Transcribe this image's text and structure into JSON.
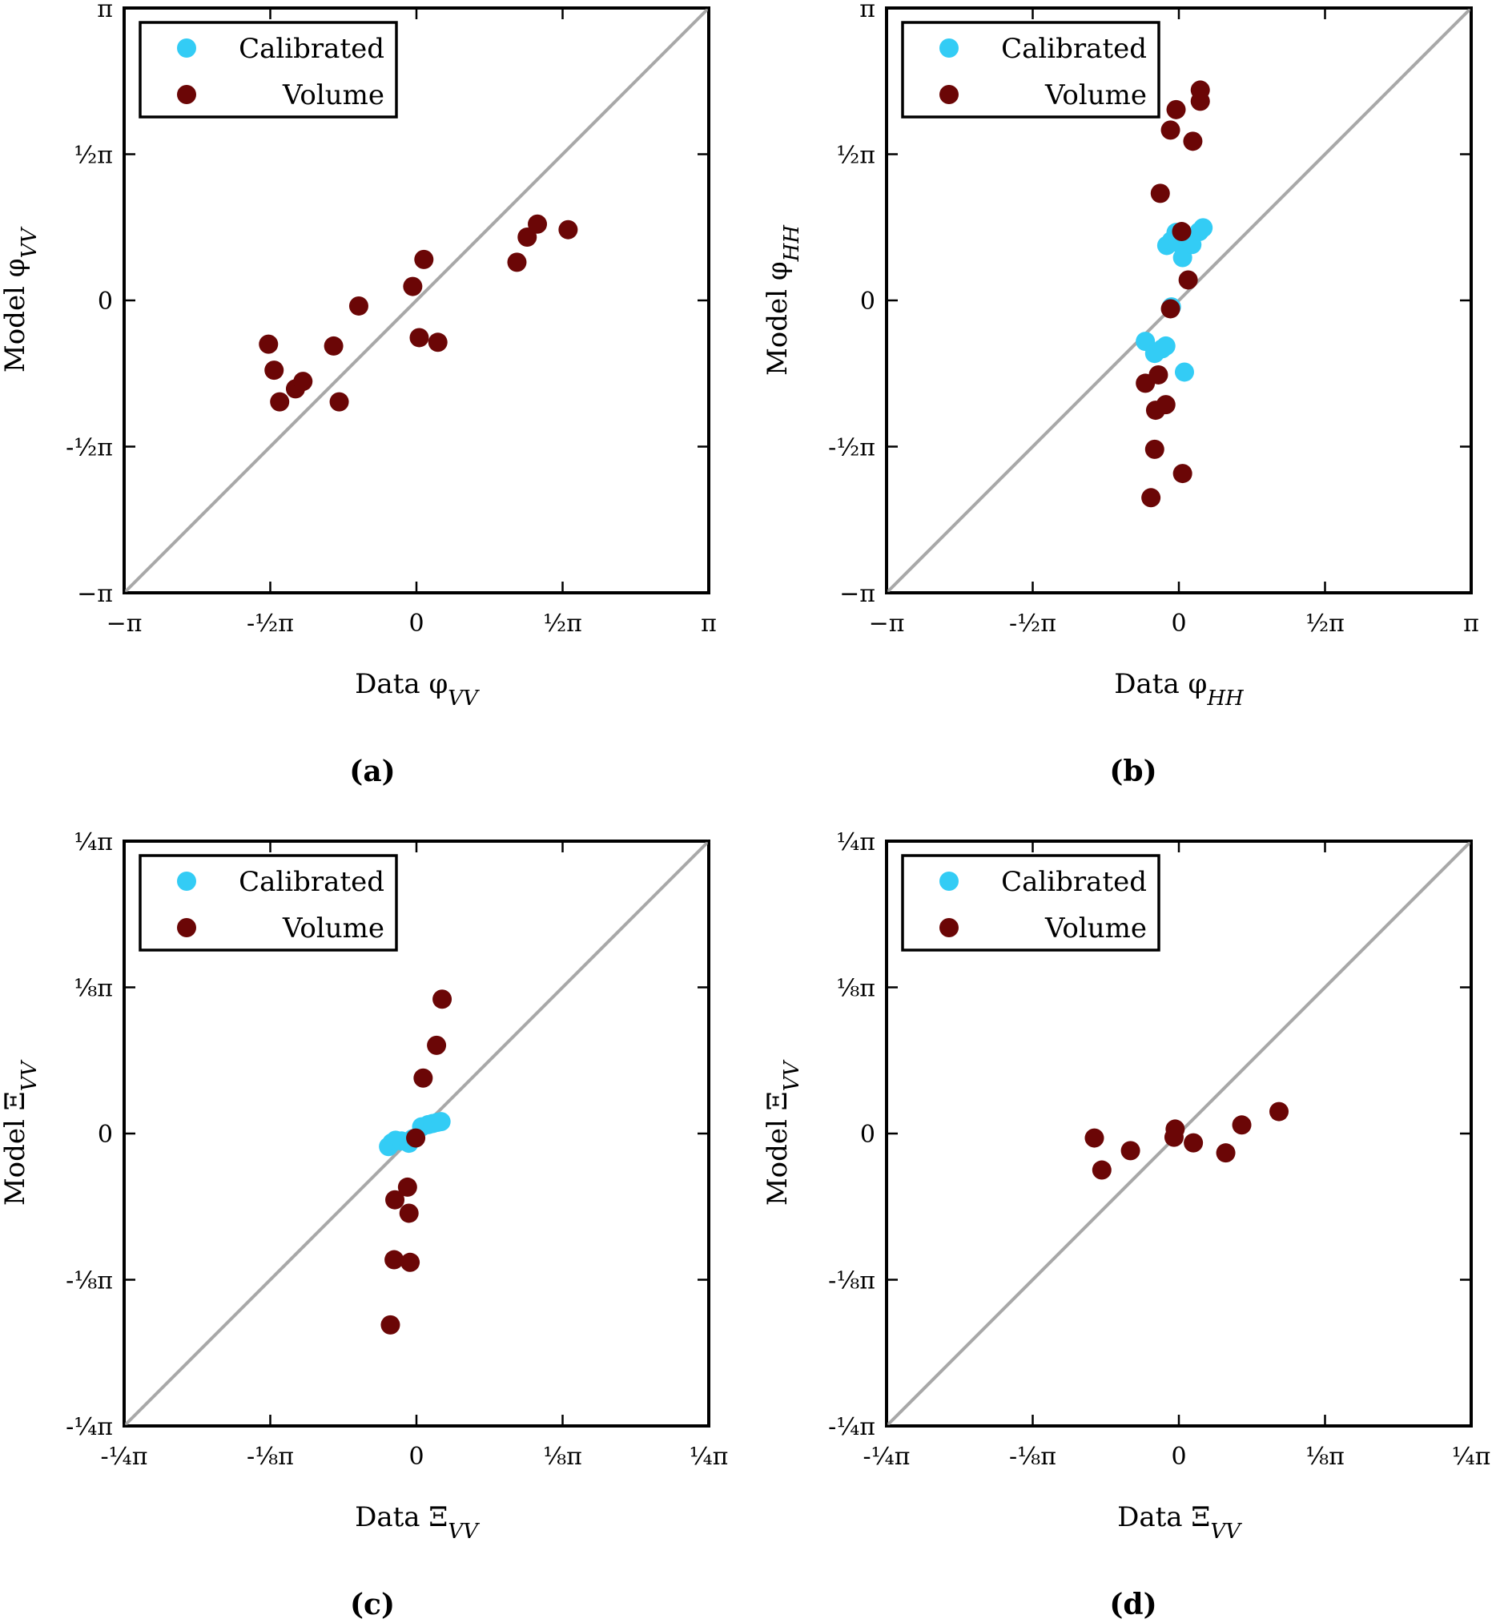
{
  "chart_data": [
    {
      "type": "scatter",
      "panel": "(a)",
      "xlabel": "Data φ_VV",
      "ylabel": "Model φ_VV",
      "xlim": [
        "-π",
        "π"
      ],
      "ylim": [
        "-π",
        "π"
      ],
      "xticks": [
        "−π",
        "-½π",
        "0",
        "½π",
        "π"
      ],
      "yticks": [
        "−π",
        "-½π",
        "0",
        "½π",
        "π"
      ],
      "reference_line": "y = x",
      "legend_position": "top-left",
      "legend": [
        "Calibrated",
        "Volume"
      ],
      "series": [
        {
          "name": "Calibrated",
          "color": "#33ccf5",
          "points": []
        },
        {
          "name": "Volume",
          "color": "#6b0606",
          "points": [
            [
              -1.59,
              -0.47
            ],
            [
              -1.53,
              -0.75
            ],
            [
              -1.47,
              -1.09
            ],
            [
              -1.3,
              -0.95
            ],
            [
              -1.22,
              -0.87
            ],
            [
              -0.83,
              -1.09
            ],
            [
              -0.89,
              -0.49
            ],
            [
              -0.62,
              -0.06
            ],
            [
              -0.04,
              0.15
            ],
            [
              0.03,
              -0.4
            ],
            [
              0.08,
              0.44
            ],
            [
              0.23,
              -0.45
            ],
            [
              1.08,
              0.41
            ],
            [
              1.19,
              0.68
            ],
            [
              1.3,
              0.82
            ],
            [
              1.63,
              0.76
            ]
          ]
        }
      ]
    },
    {
      "type": "scatter",
      "panel": "(b)",
      "xlabel": "Data φ_HH",
      "ylabel": "Model φ_HH",
      "xlim": [
        "-π",
        "π"
      ],
      "ylim": [
        "-π",
        "π"
      ],
      "xticks": [
        "−π",
        "-½π",
        "0",
        "½π",
        "π"
      ],
      "yticks": [
        "−π",
        "-½π",
        "0",
        "½π",
        "π"
      ],
      "reference_line": "y = x",
      "legend_position": "top-left",
      "legend": [
        "Calibrated",
        "Volume"
      ],
      "series": [
        {
          "name": "Calibrated",
          "color": "#33ccf5",
          "points": [
            [
              -0.36,
              -0.44
            ],
            [
              -0.26,
              -0.57
            ],
            [
              -0.18,
              -0.52
            ],
            [
              -0.14,
              -0.49
            ],
            [
              -0.13,
              0.59
            ],
            [
              -0.08,
              0.64
            ],
            [
              -0.03,
              0.73
            ],
            [
              -0.01,
              0.62
            ],
            [
              0.04,
              0.46
            ],
            [
              0.14,
              0.6
            ],
            [
              0.22,
              0.74
            ],
            [
              0.26,
              0.78
            ],
            [
              -0.08,
              -0.07
            ],
            [
              0.06,
              -0.77
            ]
          ]
        },
        {
          "name": "Volume",
          "color": "#6b0606",
          "points": [
            [
              -0.36,
              -0.89
            ],
            [
              -0.3,
              -2.12
            ],
            [
              -0.26,
              -1.6
            ],
            [
              -0.25,
              -1.18
            ],
            [
              -0.22,
              -0.8
            ],
            [
              -0.14,
              -1.12
            ],
            [
              -0.09,
              -0.09
            ],
            [
              -0.2,
              1.15
            ],
            [
              -0.09,
              1.83
            ],
            [
              -0.03,
              2.05
            ],
            [
              0.03,
              0.74
            ],
            [
              0.15,
              1.71
            ],
            [
              0.23,
              2.14
            ],
            [
              0.23,
              2.26
            ],
            [
              0.04,
              -1.86
            ],
            [
              0.1,
              0.22
            ]
          ]
        }
      ]
    },
    {
      "type": "scatter",
      "panel": "(c)",
      "xlabel": "Data Ξ_VV",
      "ylabel": "Model Ξ_VV",
      "xlim": [
        "-¼π",
        "¼π"
      ],
      "ylim": [
        "-¼π",
        "¼π"
      ],
      "xticks": [
        "-¼π",
        "-⅛π",
        "0",
        "⅛π",
        "¼π"
      ],
      "yticks": [
        "-¼π",
        "-⅛π",
        "0",
        "⅛π",
        "¼π"
      ],
      "reference_line": "y = x",
      "legend_position": "top-left",
      "legend": [
        "Calibrated",
        "Volume"
      ],
      "series": [
        {
          "name": "Calibrated",
          "color": "#33ccf5",
          "points": [
            [
              -0.075,
              -0.035
            ],
            [
              -0.066,
              -0.025
            ],
            [
              -0.056,
              -0.018
            ],
            [
              -0.04,
              -0.02
            ],
            [
              -0.02,
              -0.026
            ],
            [
              -0.01,
              -0.014
            ],
            [
              0.014,
              0.018
            ],
            [
              0.032,
              0.024
            ],
            [
              0.044,
              0.027
            ],
            [
              0.056,
              0.03
            ],
            [
              0.066,
              0.032
            ]
          ]
        },
        {
          "name": "Volume",
          "color": "#6b0606",
          "points": [
            [
              -0.002,
              -0.012
            ],
            [
              -0.024,
              -0.144
            ],
            [
              -0.058,
              -0.178
            ],
            [
              -0.02,
              -0.214
            ],
            [
              -0.06,
              -0.339
            ],
            [
              -0.017,
              -0.346
            ],
            [
              -0.07,
              -0.514
            ],
            [
              0.018,
              0.149
            ],
            [
              0.054,
              0.237
            ],
            [
              0.069,
              0.361
            ]
          ]
        }
      ]
    },
    {
      "type": "scatter",
      "panel": "(d)",
      "xlabel": "Data Ξ_VV",
      "ylabel": "Model Ξ_VV",
      "xlim": [
        "-¼π",
        "¼π"
      ],
      "ylim": [
        "-¼π",
        "¼π"
      ],
      "xticks": [
        "-¼π",
        "-⅛π",
        "0",
        "⅛π",
        "¼π"
      ],
      "yticks": [
        "-¼π",
        "-⅛π",
        "0",
        "⅛π",
        "¼π"
      ],
      "reference_line": "y = x",
      "legend_position": "top-left",
      "legend": [
        "Calibrated",
        "Volume"
      ],
      "series": [
        {
          "name": "Calibrated",
          "color": "#33ccf5",
          "points": []
        },
        {
          "name": "Volume",
          "color": "#6b0606",
          "points": [
            [
              -0.227,
              -0.012
            ],
            [
              -0.207,
              -0.098
            ],
            [
              -0.13,
              -0.046
            ],
            [
              -0.01,
              0.012
            ],
            [
              -0.013,
              -0.01
            ],
            [
              0.039,
              -0.025
            ],
            [
              0.126,
              -0.052
            ],
            [
              0.169,
              0.023
            ],
            [
              0.269,
              0.059
            ]
          ]
        }
      ]
    }
  ],
  "panel_captions": [
    "(a)",
    "(b)",
    "(c)",
    "(d)"
  ],
  "legend_labels": [
    "Calibrated",
    "Volume"
  ]
}
